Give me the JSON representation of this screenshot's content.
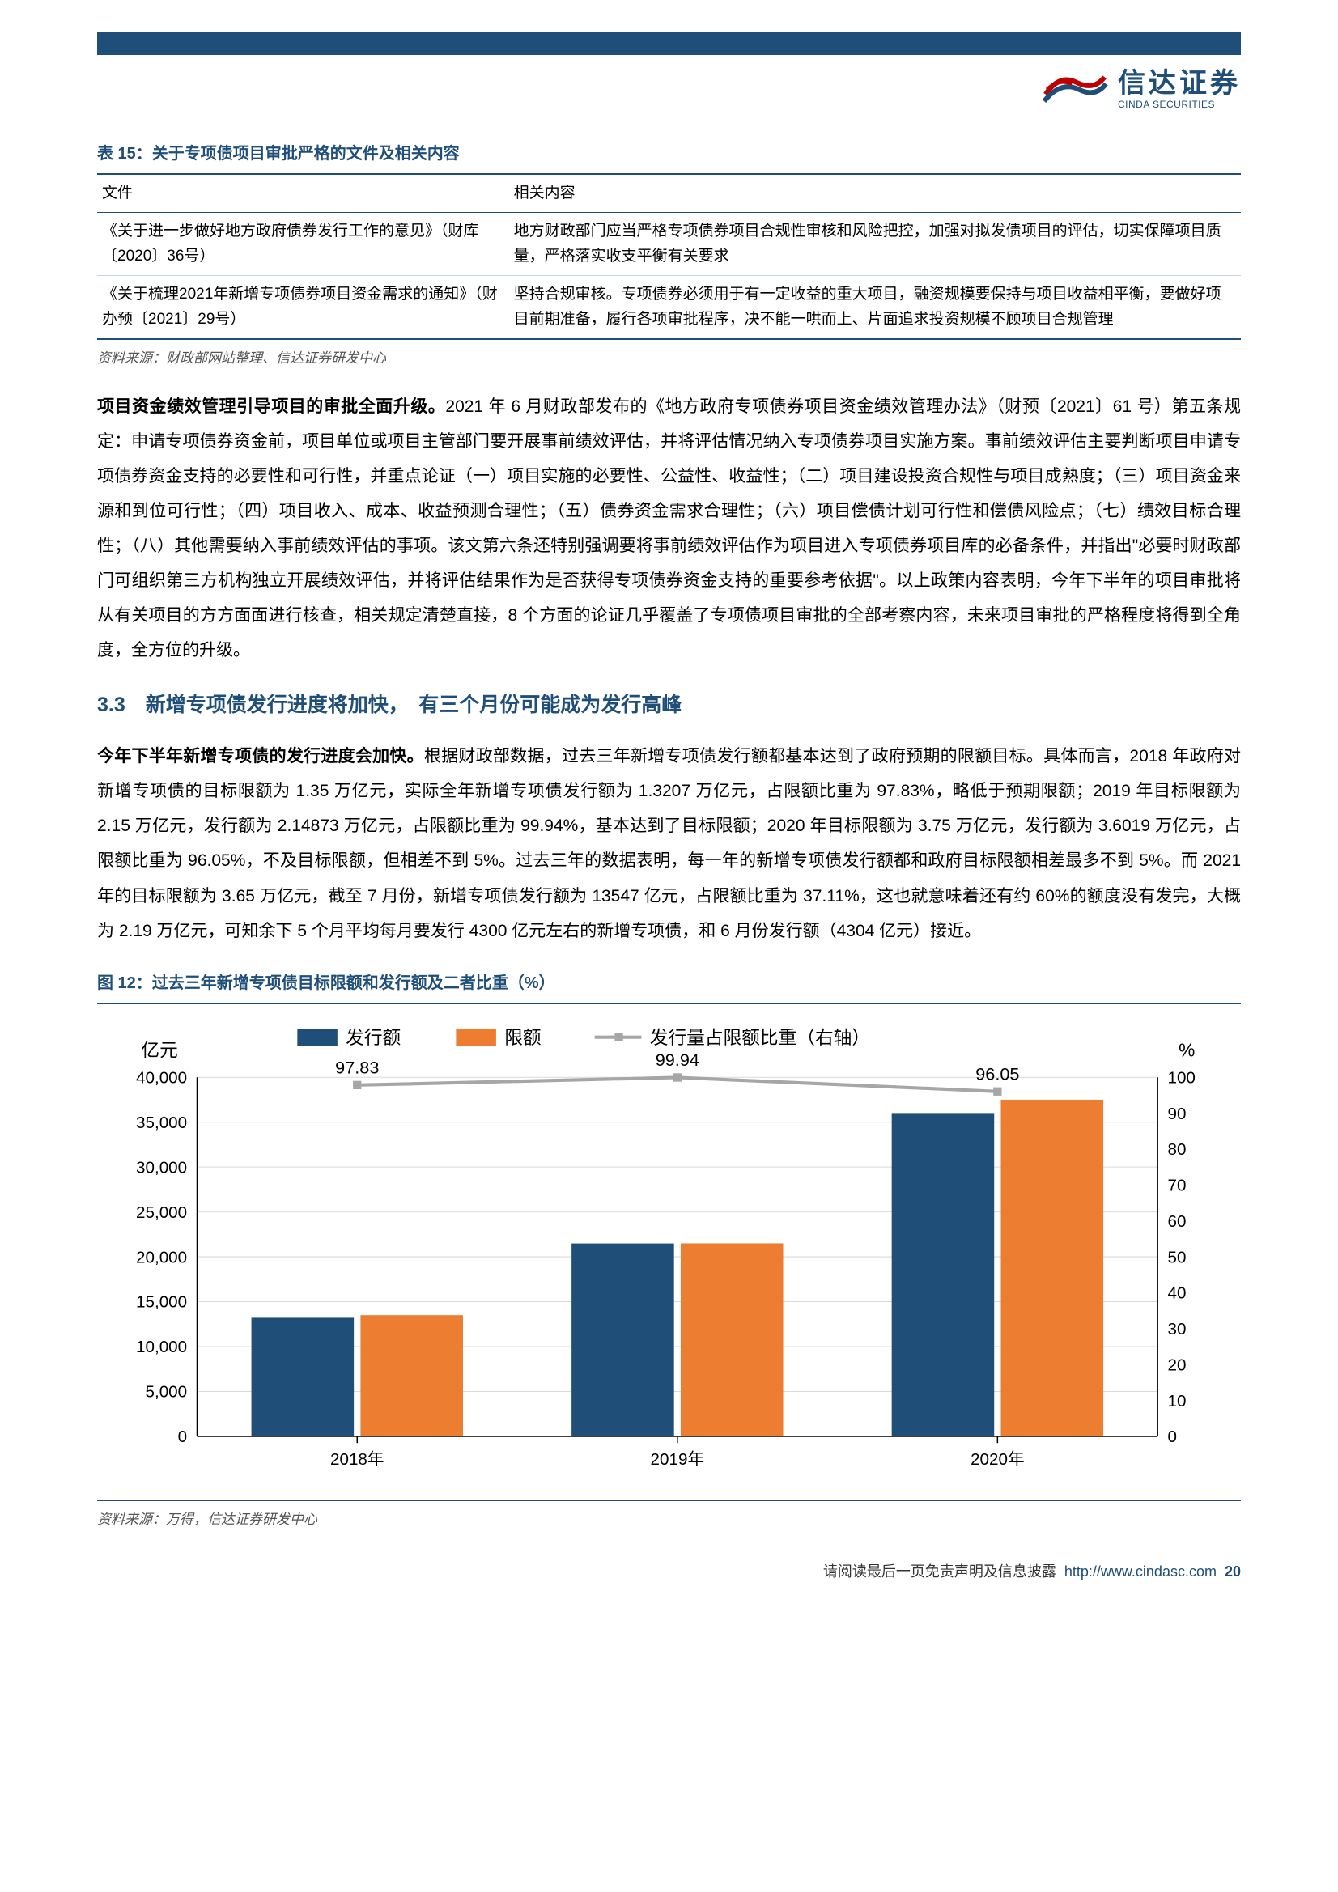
{
  "header": {
    "logo_cn": "信达证券",
    "logo_en": "CINDA SECURITIES"
  },
  "table15": {
    "title": "表 15：关于专项债项目审批严格的文件及相关内容",
    "columns": [
      "文件",
      "相关内容"
    ],
    "rows": [
      [
        "《关于进一步做好地方政府债券发行工作的意见》（财库〔2020〕36号）",
        "地方财政部门应当严格专项债券项目合规性审核和风险把控，加强对拟发债项目的评估，切实保障项目质量，严格落实收支平衡有关要求"
      ],
      [
        "《关于梳理2021年新增专项债券项目资金需求的通知》（财办预〔2021〕29号）",
        "坚持合规审核。专项债券必须用于有一定收益的重大项目，融资规模要保持与项目收益相平衡，要做好项目前期准备，履行各项审批程序，决不能一哄而上、片面追求投资规模不顾项目合规管理"
      ]
    ],
    "source": "资料来源：财政部网站整理、信达证券研发中心"
  },
  "paragraph1": {
    "lead": "项目资金绩效管理引导项目的审批全面升级。",
    "rest": "2021 年 6 月财政部发布的《地方政府专项债券项目资金绩效管理办法》（财预〔2021〕61 号）第五条规定：申请专项债券资金前，项目单位或项目主管部门要开展事前绩效评估，并将评估情况纳入专项债券项目实施方案。事前绩效评估主要判断项目申请专项债券资金支持的必要性和可行性，并重点论证（一）项目实施的必要性、公益性、收益性；（二）项目建设投资合规性与项目成熟度；（三）项目资金来源和到位可行性；（四）项目收入、成本、收益预测合理性；（五）债券资金需求合理性；（六）项目偿债计划可行性和偿债风险点；（七）绩效目标合理性；（八）其他需要纳入事前绩效评估的事项。该文第六条还特别强调要将事前绩效评估作为项目进入专项债券项目库的必备条件，并指出\"必要时财政部门可组织第三方机构独立开展绩效评估，并将评估结果作为是否获得专项债券资金支持的重要参考依据\"。以上政策内容表明，今年下半年的项目审批将从有关项目的方方面面进行核查，相关规定清楚直接，8 个方面的论证几乎覆盖了专项债项目审批的全部考察内容，未来项目审批的严格程度将得到全角度，全方位的升级。"
  },
  "section_heading": "3.3　新增专项债发行进度将加快，　有三个月份可能成为发行高峰",
  "paragraph2": {
    "lead": "今年下半年新增专项债的发行进度会加快。",
    "rest": "根据财政部数据，过去三年新增专项债发行额都基本达到了政府预期的限额目标。具体而言，2018 年政府对新增专项债的目标限额为 1.35 万亿元，实际全年新增专项债发行额为 1.3207 万亿元，占限额比重为 97.83%，略低于预期限额；2019 年目标限额为 2.15 万亿元，发行额为 2.14873 万亿元，占限额比重为 99.94%，基本达到了目标限额；2020 年目标限额为 3.75 万亿元，发行额为 3.6019 万亿元，占限额比重为 96.05%，不及目标限额，但相差不到 5%。过去三年的数据表明，每一年的新增专项债发行额都和政府目标限额相差最多不到 5%。而 2021 年的目标限额为 3.65 万亿元，截至 7 月份，新增专项债发行额为 13547 亿元，占限额比重为 37.11%，这也就意味着还有约 60%的额度没有发完，大概为 2.19 万亿元，可知余下 5 个月平均每月要发行 4300 亿元左右的新增专项债，和 6 月份发行额（4304 亿元）接近。"
  },
  "chart12": {
    "title": "图 12：过去三年新增专项债目标限额和发行额及二者比重（%）",
    "type": "bar+line",
    "y_left": {
      "label": "亿元",
      "min": 0,
      "max": 40000,
      "step": 5000
    },
    "y_right": {
      "label": "%",
      "min": 0,
      "max": 100,
      "step": 10
    },
    "categories": [
      "2018年",
      "2019年",
      "2020年"
    ],
    "series": [
      {
        "name": "发行额",
        "type": "bar",
        "color": "#1f4e79",
        "values": [
          13207,
          21487,
          36019
        ]
      },
      {
        "name": "限额",
        "type": "bar",
        "color": "#ed7d31",
        "values": [
          13500,
          21500,
          37500
        ]
      },
      {
        "name": "发行量占限额比重（右轴）",
        "type": "line",
        "color": "#a6a6a6",
        "values": [
          97.83,
          99.94,
          96.05
        ],
        "show_labels": true
      }
    ],
    "bar_width": 0.32,
    "grid_color": "#d9d9d9",
    "background_color": "#ffffff",
    "source": "资料来源：万得，信达证券研发中心"
  },
  "footer": {
    "disclaimer": "请阅读最后一页免责声明及信息披露",
    "url_text": "http://www.cindasc.com",
    "page": "20"
  }
}
